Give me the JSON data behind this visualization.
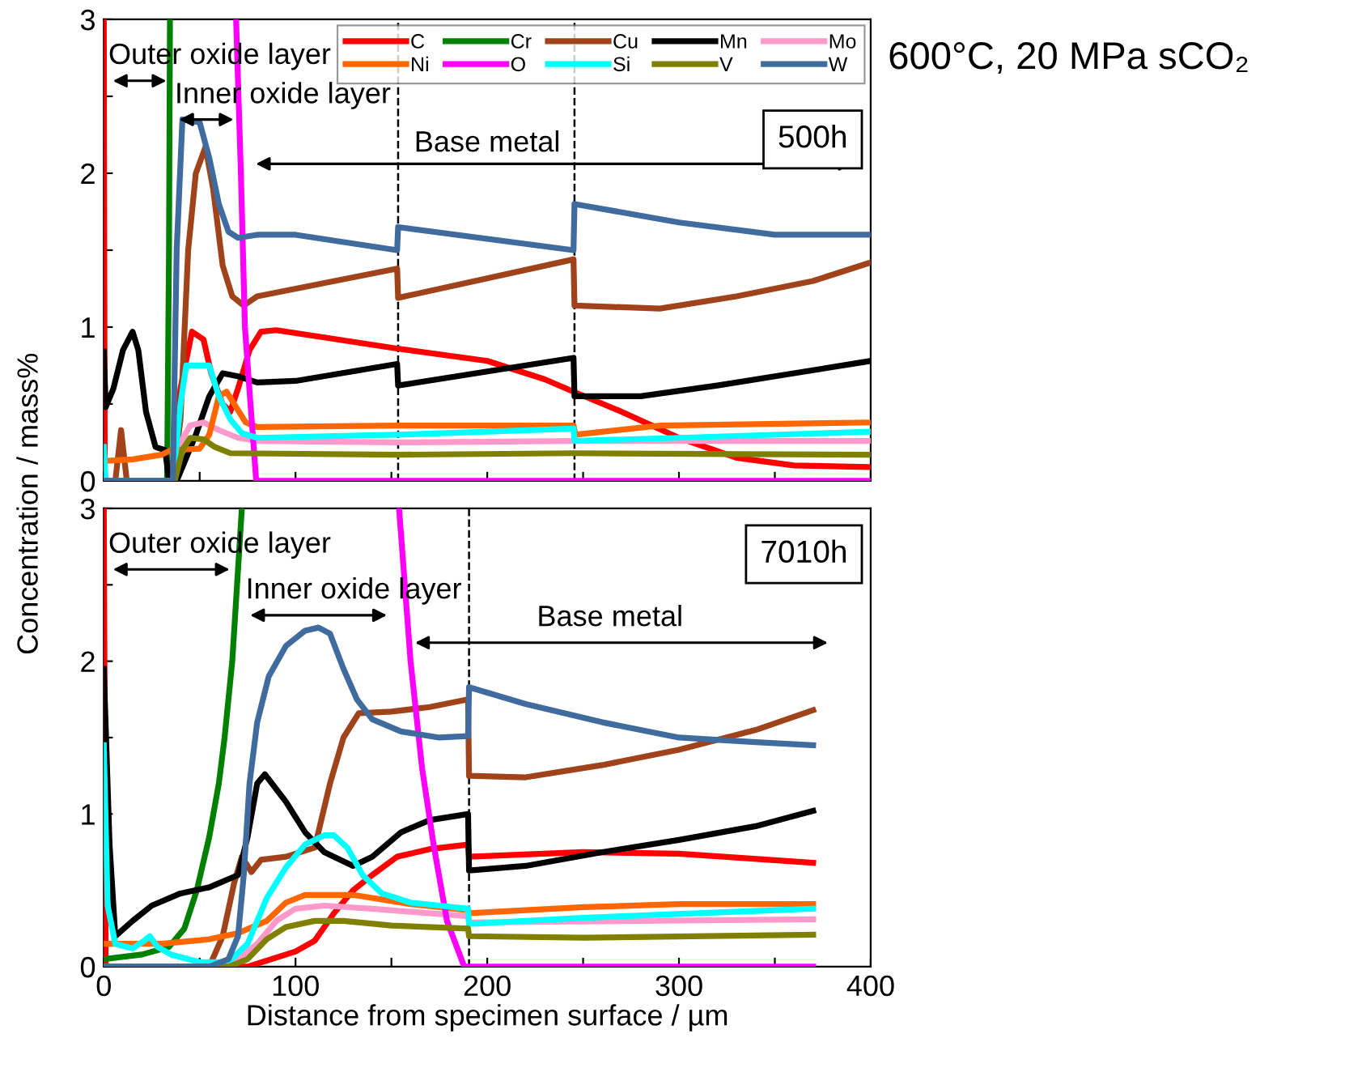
{
  "chart_data": [
    {
      "type": "line",
      "annotations": [
        "500h",
        "Outer oxide layer",
        "Inner oxide layer",
        "Base metal"
      ],
      "xlim": [
        0,
        400
      ],
      "ylim": [
        0,
        3
      ],
      "xticks": [
        0,
        {
          "value": 50,
          "label": null
        },
        100,
        {
          "value": 150,
          "label": null
        },
        200,
        {
          "value": 250,
          "label": null
        },
        300,
        {
          "value": 350,
          "label": null
        },
        400
      ],
      "yticks": [
        0,
        {
          "value": 0.5,
          "label": null
        },
        1,
        {
          "value": 1.5,
          "label": null
        },
        2,
        {
          "value": 2.5,
          "label": null
        },
        3
      ],
      "tick_labels": "y",
      "legend": "top right",
      "grid": false,
      "line_style": "solid",
      "marker": "none",
      "ref_lines": [
        {
          "axis": "x",
          "value": 153.5,
          "line_style": "dashed",
          "color": "#000000"
        },
        {
          "axis": "x",
          "value": 245.5,
          "line_style": "dashed",
          "color": "#000000"
        }
      ],
      "series": [
        {
          "name": "C",
          "color": "#ff0000",
          "x": [
            0,
            0.5,
            35,
            40,
            46,
            52,
            56,
            62,
            66,
            70,
            76,
            82,
            90,
            153,
            200,
            230,
            245,
            270,
            300,
            330,
            360,
            400
          ],
          "values": [
            3,
            0,
            0,
            0.6,
            0.97,
            0.92,
            0.7,
            0.5,
            0.45,
            0.6,
            0.85,
            0.97,
            0.98,
            0.86,
            0.78,
            0.66,
            0.58,
            0.45,
            0.28,
            0.15,
            0.1,
            0.09
          ]
        },
        {
          "name": "Cr",
          "color": "#008000",
          "x": [
            0,
            33,
            34,
            34.5
          ],
          "values": [
            0,
            0,
            1.5,
            3
          ]
        },
        {
          "name": "Cu",
          "color": "#a0431a",
          "x": [
            0,
            6,
            9,
            12,
            36,
            40,
            44,
            48,
            53,
            57,
            62,
            67,
            73,
            80,
            153,
            153.5,
            245,
            245.5,
            290,
            330,
            370,
            400
          ],
          "values": [
            0,
            0,
            0.33,
            0,
            0,
            0.4,
            1.5,
            2.0,
            2.17,
            1.9,
            1.4,
            1.2,
            1.14,
            1.2,
            1.38,
            1.19,
            1.44,
            1.14,
            1.12,
            1.2,
            1.3,
            1.42
          ]
        },
        {
          "name": "Mn",
          "color": "#000000",
          "x": [
            0,
            1,
            5,
            10,
            15,
            18,
            22,
            27,
            32,
            34,
            38,
            43,
            48,
            55,
            62,
            70,
            80,
            100,
            153,
            153.5,
            245,
            245.5,
            280,
            320,
            360,
            400
          ],
          "values": [
            0.84,
            0.48,
            0.6,
            0.85,
            0.97,
            0.85,
            0.45,
            0.22,
            0.2,
            0,
            0,
            0.15,
            0.3,
            0.55,
            0.7,
            0.68,
            0.64,
            0.65,
            0.76,
            0.62,
            0.8,
            0.55,
            0.55,
            0.62,
            0.7,
            0.78
          ]
        },
        {
          "name": "Mo",
          "color": "#ff99cc",
          "x": [
            0,
            36,
            40,
            45,
            52,
            60,
            70,
            80,
            153,
            245,
            400
          ],
          "values": [
            0,
            0,
            0.25,
            0.36,
            0.38,
            0.33,
            0.28,
            0.26,
            0.25,
            0.26,
            0.26
          ]
        },
        {
          "name": "Ni",
          "color": "#ff6600",
          "x": [
            0,
            15,
            30,
            35,
            50,
            55,
            60,
            64,
            68,
            74,
            80,
            153,
            245,
            246,
            290,
            400
          ],
          "values": [
            0.13,
            0.14,
            0.17,
            0.2,
            0.21,
            0.3,
            0.55,
            0.58,
            0.5,
            0.38,
            0.35,
            0.36,
            0.36,
            0.3,
            0.36,
            0.38
          ]
        },
        {
          "name": "O",
          "color": "#ff00ff",
          "x": [
            69,
            71.5,
            73.6,
            76.5,
            79.5,
            400
          ],
          "values": [
            3,
            2,
            1,
            0.5,
            0,
            0
          ]
        },
        {
          "name": "Si",
          "color": "#00ffff",
          "x": [
            0,
            1,
            36,
            40,
            43,
            55,
            60,
            66,
            72,
            80,
            153,
            245,
            245.5,
            300,
            400
          ],
          "values": [
            0.22,
            0,
            0,
            0.5,
            0.75,
            0.75,
            0.55,
            0.4,
            0.31,
            0.28,
            0.3,
            0.34,
            0.26,
            0.28,
            0.32
          ]
        },
        {
          "name": "V",
          "color": "#808000",
          "x": [
            0,
            37,
            41,
            45,
            52,
            58,
            66,
            153,
            245,
            400
          ],
          "values": [
            0,
            0,
            0.2,
            0.28,
            0.27,
            0.22,
            0.18,
            0.17,
            0.18,
            0.17
          ]
        },
        {
          "name": "W",
          "color": "#3f6b9f",
          "x": [
            0,
            36,
            38,
            41,
            50,
            55,
            60,
            65,
            70,
            80,
            100,
            153,
            153.5,
            245,
            245.5,
            300,
            350,
            400
          ],
          "values": [
            0,
            0,
            1.5,
            2.35,
            2.33,
            2.1,
            1.8,
            1.62,
            1.58,
            1.6,
            1.6,
            1.5,
            1.65,
            1.5,
            1.8,
            1.68,
            1.6,
            1.6
          ]
        }
      ]
    },
    {
      "type": "line",
      "xlabel": "Distance from specimen surface / µm",
      "ylabel": "Concentration / mass%",
      "annotations": [
        "7010h",
        "Outer oxide layer",
        "Inner oxide layer",
        "Base metal"
      ],
      "xlim": [
        0,
        400
      ],
      "ylim": [
        0,
        3
      ],
      "xticks": [
        0,
        {
          "value": 50,
          "label": null
        },
        100,
        {
          "value": 150,
          "label": null
        },
        200,
        {
          "value": 250,
          "label": null
        },
        300,
        {
          "value": 350,
          "label": null
        },
        400
      ],
      "yticks": [
        0,
        {
          "value": 0.5,
          "label": null
        },
        1,
        {
          "value": 1.5,
          "label": null
        },
        2,
        {
          "value": 2.5,
          "label": null
        },
        3
      ],
      "grid": false,
      "line_style": "solid",
      "marker": "none",
      "ref_lines": [
        {
          "axis": "x",
          "value": 190.5,
          "line_style": "dashed",
          "color": "#000000"
        }
      ],
      "series": [
        {
          "color": "#ff0000",
          "x": [
            0,
            1,
            75,
            100,
            110,
            120,
            130,
            140,
            153,
            170,
            190,
            190.5,
            250,
            300,
            370
          ],
          "values": [
            3,
            0,
            0,
            0.1,
            0.17,
            0.35,
            0.5,
            0.6,
            0.72,
            0.77,
            0.8,
            0.72,
            0.75,
            0.74,
            0.68
          ]
        },
        {
          "color": "#008000",
          "x": [
            0,
            20,
            34,
            42,
            48.5,
            55,
            60,
            63,
            67,
            70,
            72
          ],
          "values": [
            0.05,
            0.08,
            0.13,
            0.25,
            0.5,
            0.85,
            1.2,
            1.5,
            2.0,
            2.6,
            3
          ]
        },
        {
          "color": "#a0431a",
          "x": [
            0,
            55,
            62,
            68,
            72,
            77,
            82,
            95,
            110,
            118,
            125,
            133,
            150,
            170,
            190,
            190.5,
            220,
            260,
            300,
            340,
            370
          ],
          "values": [
            0,
            0,
            0.2,
            0.55,
            0.72,
            0.62,
            0.7,
            0.72,
            0.78,
            1.2,
            1.5,
            1.66,
            1.67,
            1.7,
            1.75,
            1.25,
            1.24,
            1.32,
            1.42,
            1.55,
            1.68
          ]
        },
        {
          "color": "#000000",
          "x": [
            0,
            3,
            6,
            15,
            25,
            40,
            55,
            70,
            75,
            80,
            84,
            95,
            105,
            115,
            130,
            140,
            155,
            170,
            190,
            190.5,
            220,
            260,
            300,
            340,
            370
          ],
          "values": [
            1.95,
            0.8,
            0.2,
            0.3,
            0.4,
            0.48,
            0.52,
            0.6,
            0.85,
            1.2,
            1.26,
            1.08,
            0.88,
            0.75,
            0.66,
            0.72,
            0.88,
            0.96,
            1.0,
            0.63,
            0.66,
            0.75,
            0.83,
            0.92,
            1.02
          ]
        },
        {
          "color": "#ff99cc",
          "x": [
            0,
            65,
            80,
            90,
            100,
            115,
            140,
            190,
            190.5,
            370
          ],
          "values": [
            0,
            0,
            0.15,
            0.3,
            0.38,
            0.4,
            0.38,
            0.33,
            0.29,
            0.31
          ]
        },
        {
          "color": "#ff6600",
          "x": [
            0,
            30,
            55,
            70,
            85,
            95,
            105,
            130,
            160,
            190,
            190.5,
            250,
            300,
            370
          ],
          "values": [
            0.15,
            0.15,
            0.18,
            0.22,
            0.3,
            0.42,
            0.47,
            0.47,
            0.41,
            0.37,
            0.35,
            0.39,
            0.41,
            0.41
          ]
        },
        {
          "color": "#ff00ff",
          "x": [
            154,
            160,
            166,
            172,
            179,
            188,
            370
          ],
          "values": [
            3,
            2,
            1.3,
            0.8,
            0.3,
            0,
            0
          ]
        },
        {
          "color": "#00ffff",
          "x": [
            0,
            2,
            6,
            15,
            21,
            24,
            28,
            35,
            50,
            65,
            75,
            85,
            95,
            105,
            115,
            120,
            127,
            135,
            145,
            160,
            175,
            190,
            190.5,
            250,
            310,
            370
          ],
          "values": [
            1.45,
            0.4,
            0.15,
            0.12,
            0.17,
            0.2,
            0.13,
            0.08,
            0.03,
            0.03,
            0.15,
            0.45,
            0.65,
            0.8,
            0.86,
            0.86,
            0.78,
            0.6,
            0.48,
            0.42,
            0.4,
            0.38,
            0.28,
            0.32,
            0.35,
            0.38
          ]
        },
        {
          "color": "#808000",
          "x": [
            0,
            65,
            75,
            85,
            95,
            110,
            125,
            150,
            190,
            190.5,
            250,
            370
          ],
          "values": [
            0,
            0,
            0.05,
            0.18,
            0.26,
            0.3,
            0.3,
            0.27,
            0.25,
            0.2,
            0.19,
            0.21
          ]
        },
        {
          "color": "#3f6b9f",
          "x": [
            0,
            55,
            65,
            70,
            73,
            76,
            80,
            86,
            95,
            105,
            112,
            118,
            125,
            132,
            140,
            155,
            175,
            190,
            190.5,
            220,
            260,
            300,
            340,
            370
          ],
          "values": [
            0,
            0,
            0.05,
            0.2,
            0.6,
            1.2,
            1.6,
            1.9,
            2.1,
            2.2,
            2.22,
            2.18,
            1.95,
            1.75,
            1.62,
            1.54,
            1.5,
            1.51,
            1.83,
            1.72,
            1.6,
            1.5,
            1.47,
            1.45
          ]
        }
      ]
    },
    {
      "type": "other",
      "title": "600°C, 20 MPa sCO₂"
    }
  ]
}
